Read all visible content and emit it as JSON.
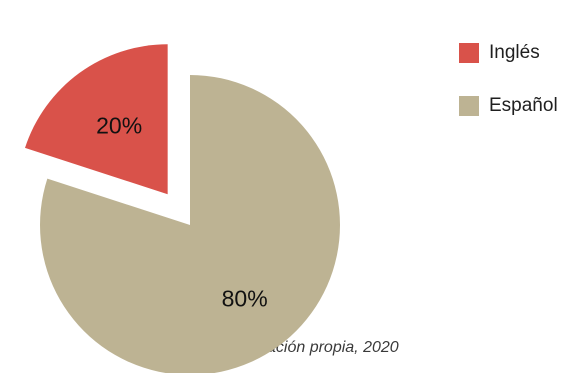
{
  "chart_data": {
    "type": "pie",
    "slices": [
      {
        "label": "Inglés",
        "value": 20,
        "value_label": "20%",
        "color": "#d9524a",
        "exploded": true
      },
      {
        "label": "Español",
        "value": 80,
        "value_label": "80%",
        "color": "#bdb393",
        "exploded": false
      }
    ],
    "legend_position": "top-right",
    "source_note": "ación propia, 2020"
  }
}
